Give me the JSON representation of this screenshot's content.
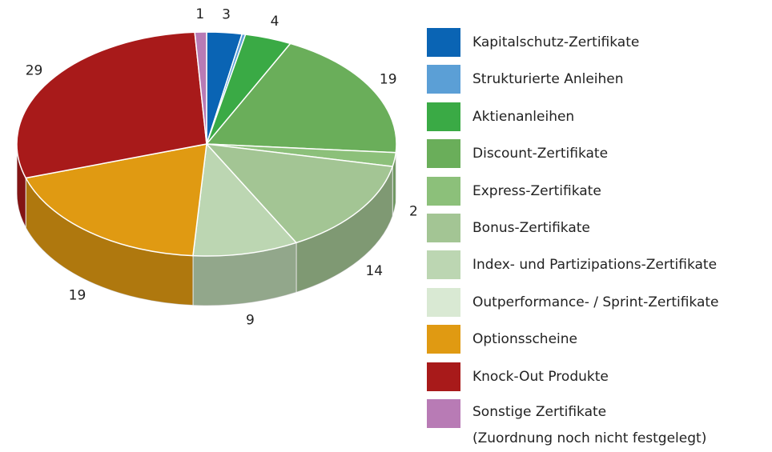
{
  "chart_data": {
    "type": "pie3d",
    "categories": [
      "Kapitalschutz-Zertifikate",
      "Strukturierte Anleihen",
      "Aktienanleihen",
      "Discount-Zertifikate",
      "Express-Zertifikate",
      "Bonus-Zertifikate",
      "Index- und Partizipations-Zertifikate",
      "Outperformance- / Sprint-Zertifikate",
      "Optionsscheine",
      "Knock-Out Produkte",
      "Sonstige Zertifikate\n(Zuordnung noch nicht festgelegt)"
    ],
    "values": [
      3,
      0.3,
      4,
      19,
      2,
      14,
      9,
      0,
      19,
      29,
      1
    ],
    "colors": [
      "#0a64b4",
      "#5b9fd6",
      "#3aaa45",
      "#6aae5a",
      "#8cc07a",
      "#a3c594",
      "#bcd6b2",
      "#d9e9d3",
      "#e09a12",
      "#a81a1a",
      "#b87bb5"
    ],
    "legend": "right"
  }
}
